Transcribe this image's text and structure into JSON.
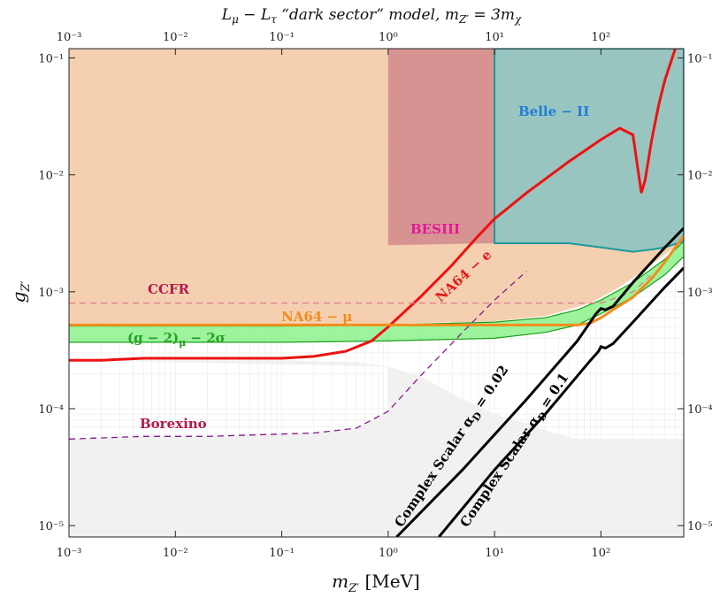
{
  "chart_data": {
    "type": "area",
    "title": "L_μ − L_τ “dark sector” model, m_Z′ = 3m_χ",
    "xlabel": "m_Z′ [MeV]",
    "ylabel": "g_Z′",
    "xscale": "log",
    "yscale": "log",
    "xlim": [
      0.001,
      600
    ],
    "ylim": [
      8e-06,
      0.12
    ],
    "x_ticks": [
      "10⁻³",
      "10⁻²",
      "10⁻¹",
      "10⁰",
      "10¹",
      "10²"
    ],
    "y_ticks": [
      "10⁻⁵",
      "10⁻⁴",
      "10⁻³",
      "10⁻²",
      "10⁻¹"
    ],
    "grid": true,
    "regions": [
      {
        "name": "CCFR",
        "fill": "#f3cba8",
        "points": [
          [
            0.001,
            0.00052
          ],
          [
            0.1,
            0.00052
          ],
          [
            1,
            0.00053
          ],
          [
            10,
            0.00056
          ],
          [
            30,
            0.00062
          ],
          [
            80,
            0.0008
          ],
          [
            150,
            0.0011
          ],
          [
            300,
            0.0017
          ],
          [
            600,
            0.0028
          ],
          [
            600,
            0.12
          ],
          [
            0.001,
            0.12
          ]
        ]
      },
      {
        "name": "BESIII",
        "fill": "#d48c8e",
        "points": [
          [
            1,
            0.0025
          ],
          [
            10,
            0.0026
          ],
          [
            10,
            0.12
          ],
          [
            1,
            0.12
          ]
        ]
      },
      {
        "name": "Belle−II",
        "fill": "#8fc3c2",
        "stroke": "#1a9a9e",
        "points": [
          [
            10,
            0.0026
          ],
          [
            50,
            0.0026
          ],
          [
            100,
            0.0024
          ],
          [
            200,
            0.0022
          ],
          [
            300,
            0.0023
          ],
          [
            400,
            0.0024
          ],
          [
            600,
            0.0027
          ],
          [
            600,
            0.12
          ],
          [
            10,
            0.12
          ]
        ]
      },
      {
        "name": "Borexino",
        "fill": "#efefef",
        "points": [
          [
            0.001,
            0.00026
          ],
          [
            0.1,
            0.00026
          ],
          [
            0.5,
            0.00025
          ],
          [
            1,
            0.00023
          ],
          [
            2,
            0.00019
          ],
          [
            5,
            0.00012
          ],
          [
            10,
            9e-05
          ],
          [
            20,
            7.5e-05
          ],
          [
            40,
            6e-05
          ],
          [
            60,
            5.5e-05
          ],
          [
            600,
            5.5e-05
          ],
          [
            600,
            8e-06
          ],
          [
            0.001,
            8e-06
          ],
          [
            0.001,
            5.5e-05
          ],
          [
            0.005,
            5.8e-05
          ],
          [
            0.02,
            5.8e-05
          ],
          [
            0.2,
            6.2e-05
          ],
          [
            0.5,
            6.8e-05
          ],
          [
            1,
            9.5e-05
          ],
          [
            1,
            0.00023
          ]
        ]
      }
    ],
    "bands": [
      {
        "name": "(g−2)_μ − 2σ",
        "fill": "#7cf07c",
        "stroke": "#1aa01a",
        "upper": [
          [
            0.001,
            0.00051
          ],
          [
            0.1,
            0.00051
          ],
          [
            1,
            0.00052
          ],
          [
            10,
            0.00055
          ],
          [
            30,
            0.0006
          ],
          [
            60,
            0.0007
          ],
          [
            100,
            0.00085
          ],
          [
            200,
            0.0012
          ],
          [
            400,
            0.0019
          ],
          [
            600,
            0.0027
          ]
        ],
        "lower": [
          [
            0.001,
            0.00037
          ],
          [
            0.1,
            0.00037
          ],
          [
            1,
            0.00038
          ],
          [
            10,
            0.0004
          ],
          [
            30,
            0.00045
          ],
          [
            60,
            0.00052
          ],
          [
            100,
            0.00065
          ],
          [
            200,
            0.0009
          ],
          [
            400,
            0.0014
          ],
          [
            600,
            0.002
          ]
        ]
      }
    ],
    "series": [
      {
        "name": "NA64−e",
        "color": "#ee1111",
        "style": "solid",
        "x": [
          0.001,
          0.002,
          0.005,
          0.01,
          0.05,
          0.1,
          0.2,
          0.4,
          0.7,
          1,
          2,
          4,
          7,
          10,
          20,
          50,
          100,
          150,
          200,
          220,
          240,
          260,
          300,
          350,
          400,
          450,
          500
        ],
        "y": [
          0.00026,
          0.00026,
          0.00027,
          0.00027,
          0.00027,
          0.00027,
          0.00028,
          0.00031,
          0.00038,
          0.0005,
          0.0009,
          0.0017,
          0.003,
          0.0042,
          0.007,
          0.013,
          0.02,
          0.025,
          0.022,
          0.012,
          0.007,
          0.009,
          0.02,
          0.04,
          0.065,
          0.09,
          0.12
        ]
      },
      {
        "name": "NA64−μ",
        "color": "#f28c1c",
        "style": "solid",
        "x": [
          0.001,
          0.1,
          1,
          10,
          30,
          60,
          80,
          100,
          130,
          200,
          300,
          400,
          500,
          600
        ],
        "y": [
          0.00052,
          0.00052,
          0.00052,
          0.00052,
          0.00052,
          0.00052,
          0.00054,
          0.0006,
          0.0007,
          0.0009,
          0.0013,
          0.0018,
          0.0024,
          0.003
        ]
      },
      {
        "name": "CCFR dashed",
        "color": "#e07a8a",
        "style": "dashed",
        "x": [
          0.001,
          1,
          10,
          100,
          200,
          300
        ],
        "y": [
          0.0008,
          0.0008,
          0.0008,
          0.0008,
          0.001,
          0.0014
        ]
      },
      {
        "name": "Borexino dashed",
        "color": "#8a1a8a",
        "style": "dashed",
        "x": [
          0.001,
          0.005,
          0.02,
          0.2,
          0.5,
          1,
          2,
          5,
          10,
          20
        ],
        "y": [
          5.5e-05,
          5.8e-05,
          5.8e-05,
          6.2e-05,
          6.8e-05,
          9.5e-05,
          0.00019,
          0.00045,
          0.00085,
          0.0015
        ]
      },
      {
        "name": "Complex Scalar α_D = 0.02",
        "color": "#000000",
        "style": "solid",
        "x": [
          1.2,
          5,
          20,
          60,
          90,
          100,
          110,
          130,
          200,
          400,
          600
        ],
        "y": [
          8e-06,
          3e-05,
          0.00012,
          0.00038,
          0.00065,
          0.00072,
          0.0007,
          0.00075,
          0.0012,
          0.0024,
          0.0035
        ]
      },
      {
        "name": "Complex Scalar α_D = 0.1",
        "color": "#000000",
        "style": "solid",
        "x": [
          3,
          10,
          30,
          80,
          95,
          100,
          110,
          130,
          200,
          400,
          600
        ],
        "y": [
          8e-06,
          3e-05,
          9e-05,
          0.00026,
          0.00031,
          0.00034,
          0.00033,
          0.00036,
          0.00055,
          0.0011,
          0.0016
        ]
      }
    ],
    "labels": {
      "title_main": "L",
      "title_sub1": "μ",
      "title_mid": " − L",
      "title_sub2": "τ",
      "title_quote": "  “dark sector”  model,   m",
      "title_sub3": "Z′",
      "title_tail": " = 3m",
      "title_sub4": "χ",
      "xlabel_main": "m",
      "xlabel_sub": "Z′",
      "xlabel_unit": " [MeV]",
      "ylabel_main": "g",
      "ylabel_sub": "Z′",
      "ccfr": "CCFR",
      "besiii": "BESIII",
      "belle": "Belle − II",
      "na64e": "NA64 − e",
      "na64mu": "NA64 − μ",
      "g2": "(g − 2)",
      "g2_sub": "μ",
      "g2_tail": " − 2σ",
      "borexino": "Borexino",
      "cs002": "Complex Scalar α",
      "cs002_sub": "D",
      "cs002_tail": " = 0.02",
      "cs01": "Complex Scalar α",
      "cs01_sub": "D",
      "cs01_tail": " = 0.1"
    },
    "colors": {
      "ccfr": "#b5184d",
      "besiii": "#e0199a",
      "belle": "#1e7fd6",
      "na64e": "#e51a1a",
      "na64mu": "#f08c1a",
      "g2": "#22a022",
      "borexino": "#b5184d",
      "cs": "#000000"
    }
  }
}
